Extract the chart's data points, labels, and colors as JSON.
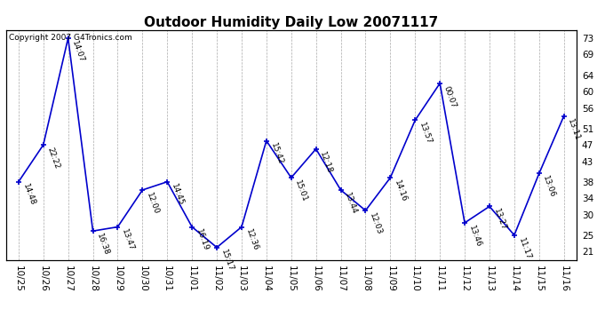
{
  "title": "Outdoor Humidity Daily Low 20071117",
  "copyright": "Copyright 2007 G4Tronics.com",
  "line_color": "#0000CC",
  "background_color": "#ffffff",
  "plot_bg_color": "#ffffff",
  "grid_color": "#aaaaaa",
  "x_labels": [
    "10/25",
    "10/26",
    "10/27",
    "10/28",
    "10/29",
    "10/30",
    "10/31",
    "11/01",
    "11/02",
    "11/03",
    "11/04",
    "11/05",
    "11/06",
    "11/07",
    "11/08",
    "11/09",
    "11/10",
    "11/11",
    "11/12",
    "11/13",
    "11/14",
    "11/15",
    "11/16"
  ],
  "y_values": [
    38,
    47,
    73,
    26,
    27,
    36,
    38,
    27,
    22,
    27,
    48,
    39,
    46,
    36,
    31,
    39,
    53,
    62,
    28,
    32,
    25,
    40,
    54
  ],
  "time_labels": [
    "14:48",
    "22:22",
    "14:07",
    "16:38",
    "13:47",
    "12:00",
    "14:45",
    "16:19",
    "15:17",
    "12:36",
    "15:42",
    "15:01",
    "12:18",
    "13:44",
    "12:03",
    "14:16",
    "13:57",
    "00:07",
    "13:46",
    "13:27",
    "11:17",
    "13:06",
    "13:11"
  ],
  "y_ticks": [
    21,
    25,
    30,
    34,
    38,
    43,
    47,
    51,
    56,
    60,
    64,
    69,
    73
  ],
  "ylim": [
    19,
    75
  ],
  "title_fontsize": 11,
  "label_fontsize": 6.5,
  "tick_fontsize": 7.5,
  "copyright_fontsize": 6.5
}
